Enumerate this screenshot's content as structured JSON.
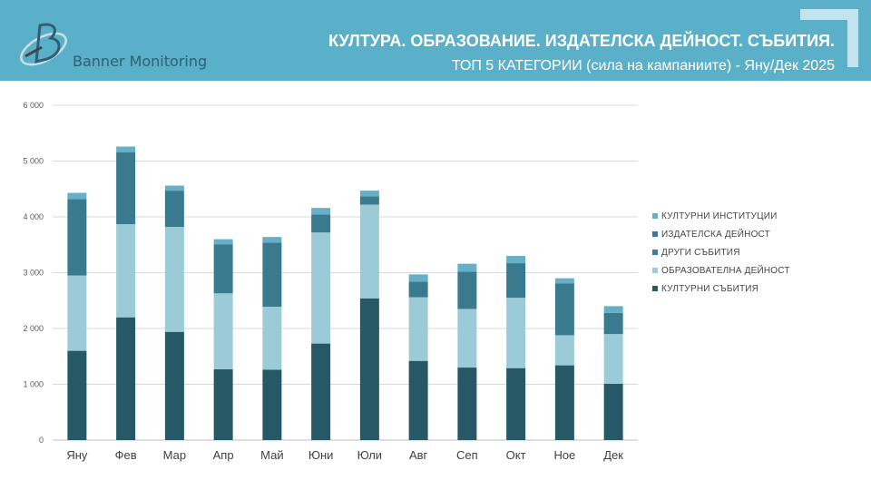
{
  "header": {
    "brand": "Banner Monitoring",
    "title": "КУЛТУРА. ОБРАЗОВАНИЕ. ИЗДАТЕЛСКА ДЕЙНОСТ. СЪБИТИЯ.",
    "subtitle": "ТОП 5 КАТЕГОРИИ (сила на кампаниите) - Яну/Дек 2025"
  },
  "colors": {
    "header_bg": "#5aafc9",
    "КУЛТУРНИ СЪБИТИЯ": "#265865",
    "ОБРАЗОВАТЕЛНА ДЕЙНОСТ": "#9ccbd8",
    "ДРУГИ СЪБИТИЯ": "#3c8198",
    "ИЗДАТЕЛСКА ДЕЙНОСТ": "#3a7a8e",
    "КУЛТУРНИ ИНСТИТУЦИИ": "#65b0c8"
  },
  "chart_data": {
    "type": "bar",
    "stacked": true,
    "categories": [
      "Яну",
      "Фев",
      "Мар",
      "Апр",
      "Май",
      "Юни",
      "Юли",
      "Авг",
      "Сеп",
      "Окт",
      "Ное",
      "Дек"
    ],
    "ylim": [
      0,
      6000
    ],
    "yticks": [
      "0",
      "1 000",
      "2 000",
      "3 000",
      "4 000",
      "5 000",
      "6 000"
    ],
    "grid": true,
    "legend_position": "right",
    "series": [
      {
        "name": "КУЛТУРНИ СЪБИТИЯ",
        "values": [
          1600,
          2200,
          1940,
          1270,
          1260,
          1730,
          2540,
          1420,
          1300,
          1290,
          1340,
          1010
        ]
      },
      {
        "name": "ОБРАЗОВАТЕЛНА ДЕЙНОСТ",
        "values": [
          1350,
          1670,
          1880,
          1360,
          1130,
          1990,
          1680,
          1140,
          1050,
          1260,
          540,
          890
        ]
      },
      {
        "name": "ДРУГИ СЪБИТИЯ",
        "values": [
          0,
          0,
          0,
          0,
          0,
          0,
          0,
          0,
          0,
          0,
          0,
          0
        ]
      },
      {
        "name": "ИЗДАТЕЛСКА ДЕЙНОСТ",
        "values": [
          1370,
          1290,
          650,
          880,
          1150,
          320,
          150,
          280,
          670,
          620,
          930,
          380
        ]
      },
      {
        "name": "КУЛТУРНИ ИНСТИТУЦИИ",
        "values": [
          110,
          100,
          90,
          90,
          100,
          120,
          100,
          130,
          140,
          130,
          90,
          120
        ]
      }
    ]
  }
}
